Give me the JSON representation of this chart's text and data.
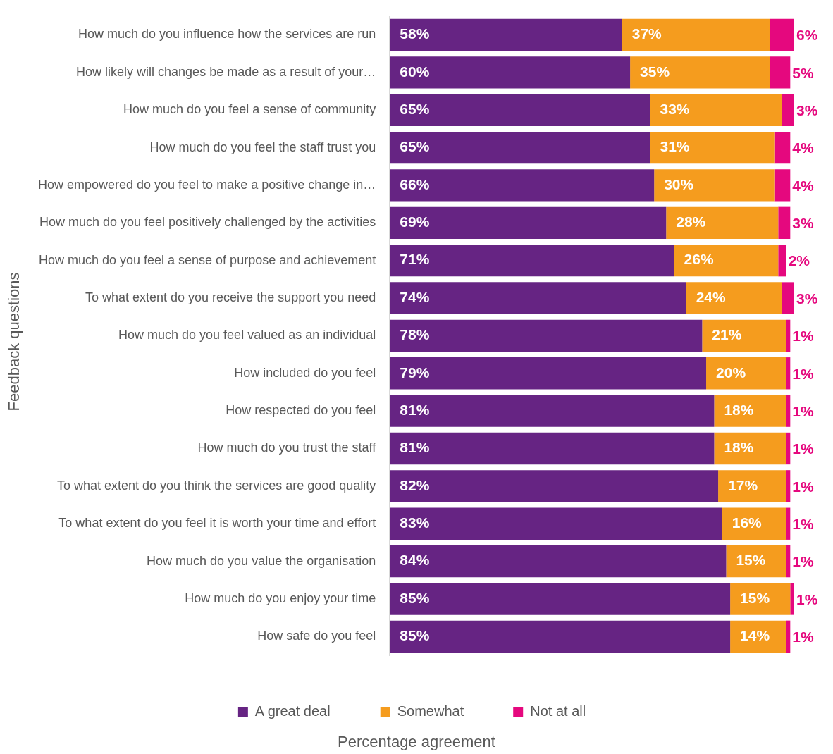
{
  "chart_data": {
    "type": "bar",
    "orientation": "horizontal",
    "stacked": true,
    "xlabel": "Percentage agreement",
    "ylabel": "Feedback questions",
    "legend": "bottom",
    "grid": false,
    "tick_labels": "y",
    "categories": [
      "How much do you influence how the services are run",
      "How likely will changes be made as a result of your…",
      "How much do you feel a sense of community",
      "How much do you feel the staff trust you",
      "How empowered do you feel to make a positive change in…",
      "How much do you feel positively challenged by the activities",
      "How much do you feel a sense of purpose and achievement",
      "To what extent do you receive the support you need",
      "How much do you feel valued as an individual",
      "How included do you feel",
      "How respected do you feel",
      "How much do you trust the staff",
      "To what extent do you think the services are good quality",
      "To what extent do you feel it is worth your time and effort",
      "How much do you value the organisation",
      "How much do you enjoy your time",
      "How safe do you feel"
    ],
    "series": [
      {
        "name": "A great deal",
        "color": "#662483",
        "values": [
          58,
          60,
          65,
          65,
          66,
          69,
          71,
          74,
          78,
          79,
          81,
          81,
          82,
          83,
          84,
          85,
          85
        ],
        "value_labels": [
          "58%",
          "60%",
          "65%",
          "65%",
          "66%",
          "69%",
          "71%",
          "74%",
          "78%",
          "79%",
          "81%",
          "81%",
          "82%",
          "83%",
          "84%",
          "85%",
          "85%"
        ]
      },
      {
        "name": "Somewhat",
        "color": "#f59c1e",
        "values": [
          37,
          35,
          33,
          31,
          30,
          28,
          26,
          24,
          21,
          20,
          18,
          18,
          17,
          16,
          15,
          15,
          14
        ],
        "value_labels": [
          "37%",
          "35%",
          "33%",
          "31%",
          "30%",
          "28%",
          "26%",
          "24%",
          "21%",
          "20%",
          "18%",
          "18%",
          "17%",
          "16%",
          "15%",
          "15%",
          "14%"
        ]
      },
      {
        "name": "Not at all",
        "color": "#e5087e",
        "values": [
          6,
          5,
          3,
          4,
          4,
          3,
          2,
          3,
          1,
          1,
          1,
          1,
          1,
          1,
          1,
          1,
          1
        ],
        "value_labels": [
          "6%",
          "5%",
          "3%",
          "4%",
          "4%",
          "3%",
          "2%",
          "3%",
          "1%",
          "1%",
          "1%",
          "1%",
          "1%",
          "1%",
          "1%",
          "1%",
          "1%"
        ]
      }
    ]
  }
}
